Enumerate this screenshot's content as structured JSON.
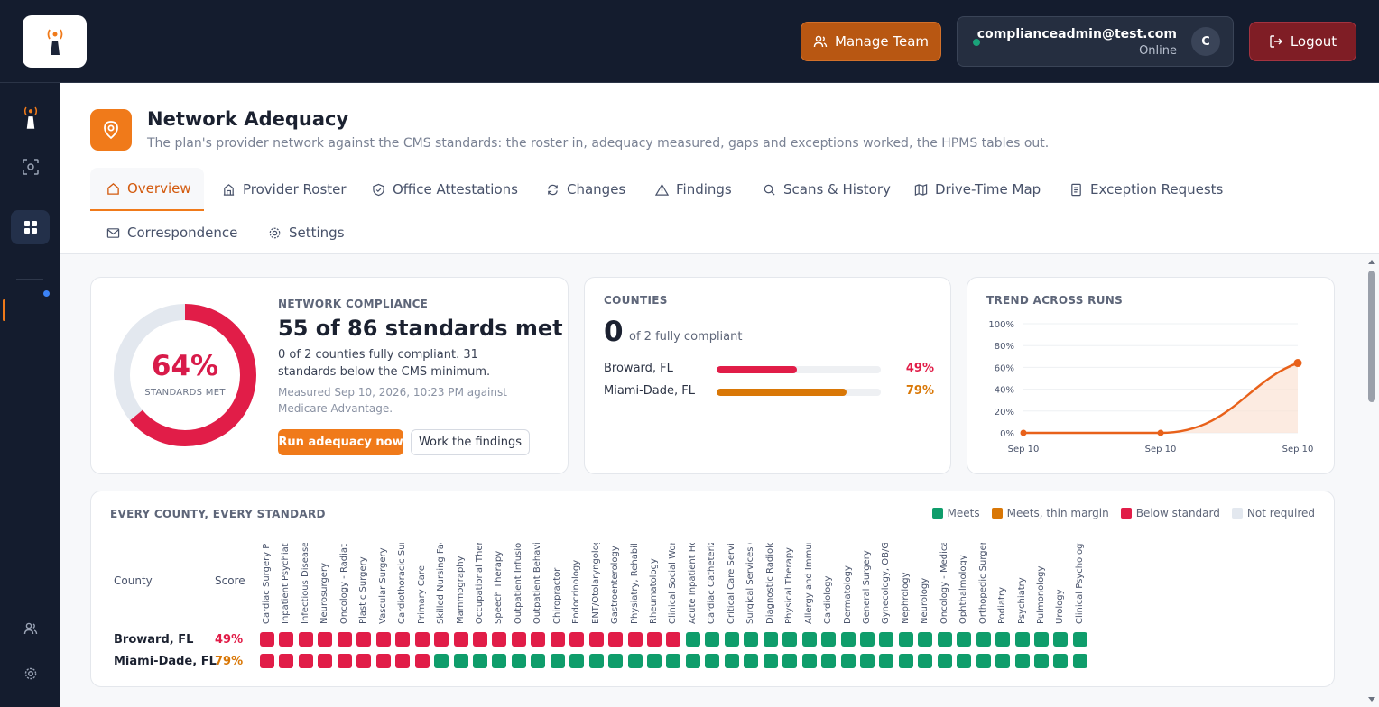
{
  "header": {
    "manage_team_label": "Manage Team",
    "user_email": "complianceadmin@test.com",
    "user_status": "Online",
    "avatar_initial": "C",
    "logout_label": "Logout"
  },
  "page": {
    "title": "Network Adequacy",
    "subtitle": "The plan's provider network against the CMS standards: the roster in, adequacy measured, gaps and exceptions worked, the HPMS tables out."
  },
  "tabs": [
    {
      "label": "Overview",
      "icon": "home-icon"
    },
    {
      "label": "Provider Roster",
      "icon": "building-icon"
    },
    {
      "label": "Office Attestations",
      "icon": "shield-check-icon"
    },
    {
      "label": "Changes",
      "icon": "refresh-icon"
    },
    {
      "label": "Findings",
      "icon": "warning-icon"
    },
    {
      "label": "Scans & History",
      "icon": "search-icon"
    },
    {
      "label": "Drive-Time Map",
      "icon": "map-icon"
    },
    {
      "label": "Exception Requests",
      "icon": "document-icon"
    },
    {
      "label": "Correspondence",
      "icon": "mail-icon"
    },
    {
      "label": "Settings",
      "icon": "gear-icon"
    }
  ],
  "compliance": {
    "eyebrow": "NETWORK COMPLIANCE",
    "percent": "64%",
    "percent_value": 64,
    "percent_label": "STANDARDS MET",
    "title": "55 of 86 standards met",
    "description": "0 of 2 counties fully compliant. 31 standards below the CMS minimum.",
    "meta": "Measured Sep 10, 2026, 10:23 PM against Medicare Advantage.",
    "run_button": "Run adequacy now",
    "work_button": "Work the findings"
  },
  "counties": {
    "eyebrow": "COUNTIES",
    "count": "0",
    "of_text": "of 2 fully compliant",
    "rows": [
      {
        "name": "Broward, FL",
        "pct": "49%",
        "value": 49,
        "color": "#e11d48"
      },
      {
        "name": "Miami-Dade, FL",
        "pct": "79%",
        "value": 79,
        "color": "#d97706"
      }
    ]
  },
  "trend": {
    "eyebrow": "TREND ACROSS RUNS",
    "chart_data": {
      "type": "area",
      "x": [
        "Sep 10",
        "Sep 10",
        "Sep 10"
      ],
      "y_ticks": [
        "0%",
        "20%",
        "40%",
        "60%",
        "80%",
        "100%"
      ],
      "ylim": [
        0,
        100
      ],
      "values": [
        0,
        0,
        64
      ],
      "color": "#e8611a"
    }
  },
  "matrix": {
    "eyebrow": "EVERY COUNTY, EVERY STANDARD",
    "legend": [
      {
        "label": "Meets",
        "color": "#0f9d6b"
      },
      {
        "label": "Meets, thin margin",
        "color": "#d97706"
      },
      {
        "label": "Below standard",
        "color": "#e11d48"
      },
      {
        "label": "Not required",
        "color": "#e3e8ef"
      }
    ],
    "county_header": "County",
    "score_header": "Score",
    "columns": [
      "Cardiac Surgery Pro...",
      "Inpatient Psychiatric...",
      "Infectious Diseases",
      "Neurosurgery",
      "Oncology - Radiatio...",
      "Plastic Surgery",
      "Vascular Surgery",
      "Cardiothoracic Surg...",
      "Primary Care",
      "Skilled Nursing Facili...",
      "Mammography",
      "Occupational Thera...",
      "Speech Therapy",
      "Outpatient Infusion/...",
      "Outpatient Behavior...",
      "Chiropractor",
      "Endocrinology",
      "ENT/Otolaryngology",
      "Gastroenterology",
      "Physiatry, Rehabilita...",
      "Rheumatology",
      "Clinical Social Work",
      "Acute Inpatient Hos...",
      "Cardiac Catheteriza...",
      "Critical Care Service...",
      "Surgical Services (O...",
      "Diagnostic Radiology",
      "Physical Therapy",
      "Allergy and Immunol...",
      "Cardiology",
      "Dermatology",
      "General Surgery",
      "Gynecology, OB/GYN",
      "Nephrology",
      "Neurology",
      "Oncology - Medical...",
      "Ophthalmology",
      "Orthopedic Surgery",
      "Podiatry",
      "Psychiatry",
      "Pulmonology",
      "Urology",
      "Clinical Psychology"
    ],
    "rows": [
      {
        "county": "Broward, FL",
        "score": "49%",
        "score_color": "#e11d48",
        "cells": [
          "below",
          "below",
          "below",
          "below",
          "below",
          "below",
          "below",
          "below",
          "below",
          "below",
          "below",
          "below",
          "below",
          "below",
          "below",
          "below",
          "below",
          "below",
          "below",
          "below",
          "below",
          "below",
          "meets",
          "meets",
          "meets",
          "meets",
          "meets",
          "meets",
          "meets",
          "meets",
          "meets",
          "meets",
          "meets",
          "meets",
          "meets",
          "meets",
          "meets",
          "meets",
          "meets",
          "meets",
          "meets",
          "meets",
          "meets"
        ]
      },
      {
        "county": "Miami-Dade, FL",
        "score": "79%",
        "score_color": "#d97706",
        "cells": [
          "below",
          "below",
          "below",
          "below",
          "below",
          "below",
          "below",
          "below",
          "below",
          "meets",
          "meets",
          "meets",
          "meets",
          "meets",
          "meets",
          "meets",
          "meets",
          "meets",
          "meets",
          "meets",
          "meets",
          "meets",
          "meets",
          "meets",
          "meets",
          "meets",
          "meets",
          "meets",
          "meets",
          "meets",
          "meets",
          "meets",
          "meets",
          "meets",
          "meets",
          "meets",
          "meets",
          "meets",
          "meets",
          "meets",
          "meets",
          "meets",
          "meets"
        ]
      }
    ]
  },
  "colors": {
    "accent": "#f07a1a",
    "meets": "#0f9d6b",
    "below": "#e11d48",
    "thin": "#d97706"
  }
}
